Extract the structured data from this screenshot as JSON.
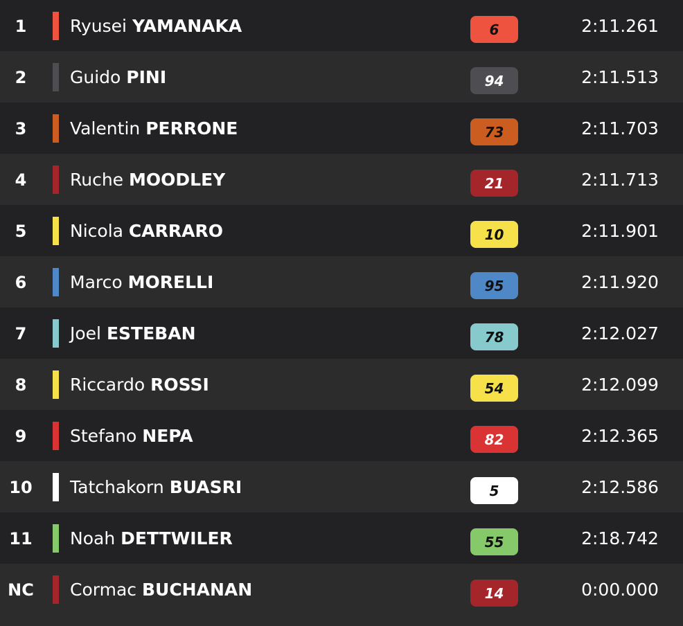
{
  "results": [
    {
      "pos": "1",
      "first": "Ryusei",
      "last": "YAMANAKA",
      "number": "6",
      "color": "#ee5340",
      "text_color": "#111111",
      "time": "2:11.261"
    },
    {
      "pos": "2",
      "first": "Guido",
      "last": "PINI",
      "number": "94",
      "color": "#4e4e52",
      "text_color": "#ffffff",
      "time": "2:11.513"
    },
    {
      "pos": "3",
      "first": "Valentin",
      "last": "PERRONE",
      "number": "73",
      "color": "#cc5d20",
      "text_color": "#111111",
      "time": "2:11.703"
    },
    {
      "pos": "4",
      "first": "Ruche",
      "last": "MOODLEY",
      "number": "21",
      "color": "#a4252a",
      "text_color": "#ffffff",
      "time": "2:11.713"
    },
    {
      "pos": "5",
      "first": "Nicola",
      "last": "CARRARO",
      "number": "10",
      "color": "#f6e14a",
      "text_color": "#111111",
      "time": "2:11.901"
    },
    {
      "pos": "6",
      "first": "Marco",
      "last": "MORELLI",
      "number": "95",
      "color": "#4e88c6",
      "text_color": "#111111",
      "time": "2:11.920"
    },
    {
      "pos": "7",
      "first": "Joel",
      "last": "ESTEBAN",
      "number": "78",
      "color": "#86cacd",
      "text_color": "#111111",
      "time": "2:12.027"
    },
    {
      "pos": "8",
      "first": "Riccardo",
      "last": "ROSSI",
      "number": "54",
      "color": "#f6e14a",
      "text_color": "#111111",
      "time": "2:12.099"
    },
    {
      "pos": "9",
      "first": "Stefano",
      "last": "NEPA",
      "number": "82",
      "color": "#d93433",
      "text_color": "#ffffff",
      "time": "2:12.365"
    },
    {
      "pos": "10",
      "first": "Tatchakorn",
      "last": "BUASRI",
      "number": "5",
      "color": "#ffffff",
      "text_color": "#111111",
      "time": "2:12.586"
    },
    {
      "pos": "11",
      "first": "Noah",
      "last": "DETTWILER",
      "number": "55",
      "color": "#86c96a",
      "text_color": "#111111",
      "time": "2:18.742"
    },
    {
      "pos": "NC",
      "first": "Cormac",
      "last": "BUCHANAN",
      "number": "14",
      "color": "#a4252a",
      "text_color": "#ffffff",
      "time": "0:00.000"
    }
  ]
}
